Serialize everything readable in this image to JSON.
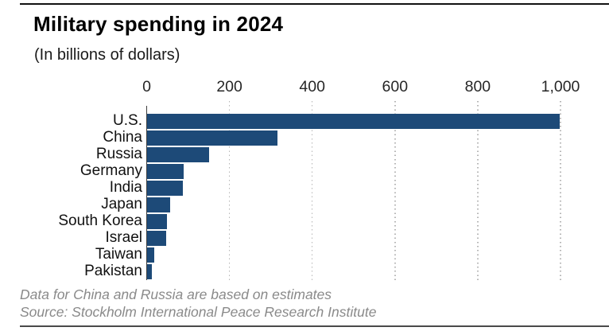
{
  "header": {
    "title": "Military spending in 2024",
    "subtitle": "(In billions of dollars)"
  },
  "chart_data": {
    "type": "bar",
    "orientation": "horizontal",
    "title": "Military spending in 2024",
    "subtitle": "(In billions of dollars)",
    "categories": [
      "U.S.",
      "China",
      "Russia",
      "Germany",
      "India",
      "Japan",
      "South Korea",
      "Israel",
      "Taiwan",
      "Pakistan"
    ],
    "values": [
      997,
      314,
      149,
      88.5,
      86.1,
      55.3,
      47.6,
      46.5,
      16.5,
      10.2
    ],
    "xlabel": "",
    "ylabel": "",
    "xlim": [
      0,
      1000
    ],
    "x_ticks": [
      0,
      200,
      400,
      600,
      800,
      1000
    ],
    "x_tick_labels": [
      "0",
      "200",
      "400",
      "600",
      "800",
      "1,000"
    ],
    "grid": "vertical-dotted",
    "legend": "none",
    "bar_color": "#1d4a78"
  },
  "footer": {
    "note": "Data for China and Russia are based on estimates",
    "source": "Source: Stockholm International Peace Research Institute"
  },
  "colors": {
    "bar": "#1d4a78",
    "axis_line": "#3f3f3f",
    "gridline": "#b5b5b5",
    "tick_text": "#262626",
    "label_text": "#111111",
    "footer_text": "#8a8a8a",
    "top_rule": "#121212",
    "bottom_rule": "#4a4a4a",
    "background": "#ffffff"
  }
}
